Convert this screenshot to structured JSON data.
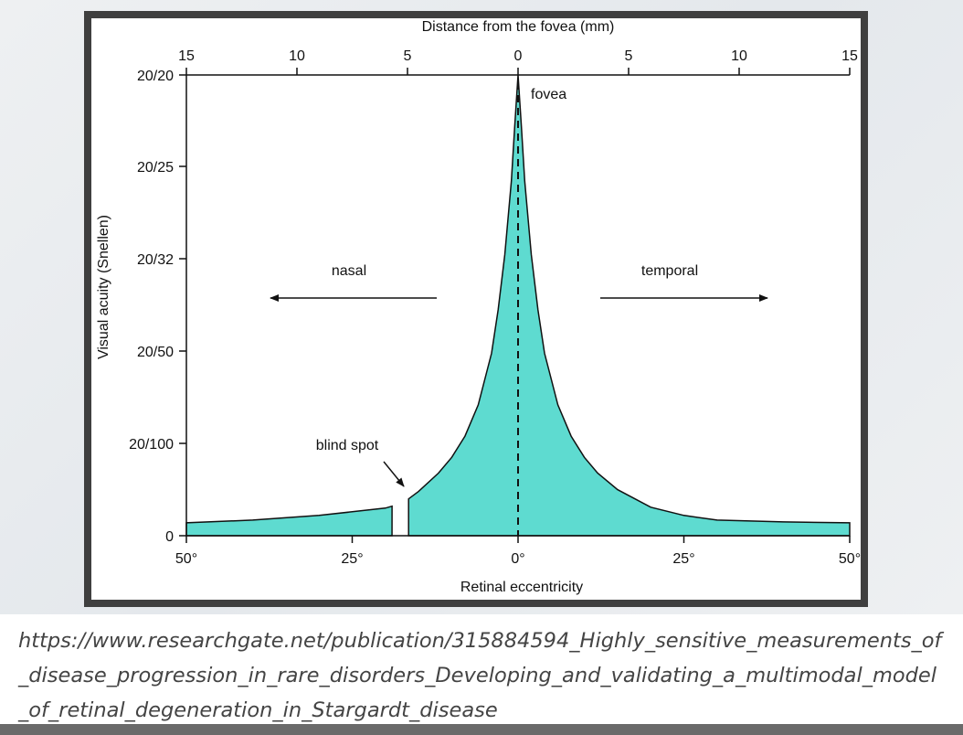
{
  "caption": "https://www.researchgate.net/publication/315884594_Highly_sensitive_measurements_of_disease_progression_in_rare_disorders_Developing_and_validating_a_multimodal_model_of_retinal_degeneration_in_Stargardt_disease",
  "chart_data": {
    "type": "area",
    "title": "",
    "xlabel": "Retinal eccentricity",
    "x2label": "Distance from the fovea (mm)",
    "ylabel": "Visual acuity (Snellen)",
    "xlim": [
      -50,
      50
    ],
    "x_ticks": [
      -50,
      -25,
      0,
      25,
      50
    ],
    "x_tick_labels": [
      "50°",
      "25°",
      "0°",
      "25°",
      "50°"
    ],
    "x2lim": [
      -15,
      15
    ],
    "x2_ticks": [
      -15,
      -10,
      -5,
      0,
      5,
      10,
      15
    ],
    "x2_tick_labels": [
      "15",
      "10",
      "5",
      "0",
      "5",
      "10",
      "15"
    ],
    "y_tick_labels": [
      "0",
      "20/100",
      "20/50",
      "20/32",
      "20/25",
      "20/20"
    ],
    "fill_color": "#5edbd0",
    "series": [
      {
        "x": [
          -50,
          -40,
          -30,
          -20,
          -19,
          -16.5,
          -15,
          -12,
          -10,
          -8,
          -6,
          -4,
          -3,
          -2,
          -1,
          -0.5,
          0,
          0.5,
          1,
          2,
          3,
          4,
          6,
          8,
          10,
          12,
          15,
          20,
          25,
          30,
          40,
          50
        ],
        "y": [
          0.14,
          0.17,
          0.22,
          0.3,
          0.32,
          0.4,
          0.48,
          0.68,
          0.85,
          1.08,
          1.42,
          1.98,
          2.45,
          3.05,
          3.85,
          4.45,
          5.0,
          4.45,
          3.85,
          3.05,
          2.45,
          1.98,
          1.42,
          1.08,
          0.85,
          0.68,
          0.5,
          0.31,
          0.22,
          0.17,
          0.15,
          0.14
        ]
      }
    ],
    "blind_spot": [
      -19,
      -16.5
    ],
    "annotations": {
      "fovea": "fovea",
      "blind_spot": "blind spot",
      "nasal": "nasal",
      "temporal": "temporal"
    }
  }
}
